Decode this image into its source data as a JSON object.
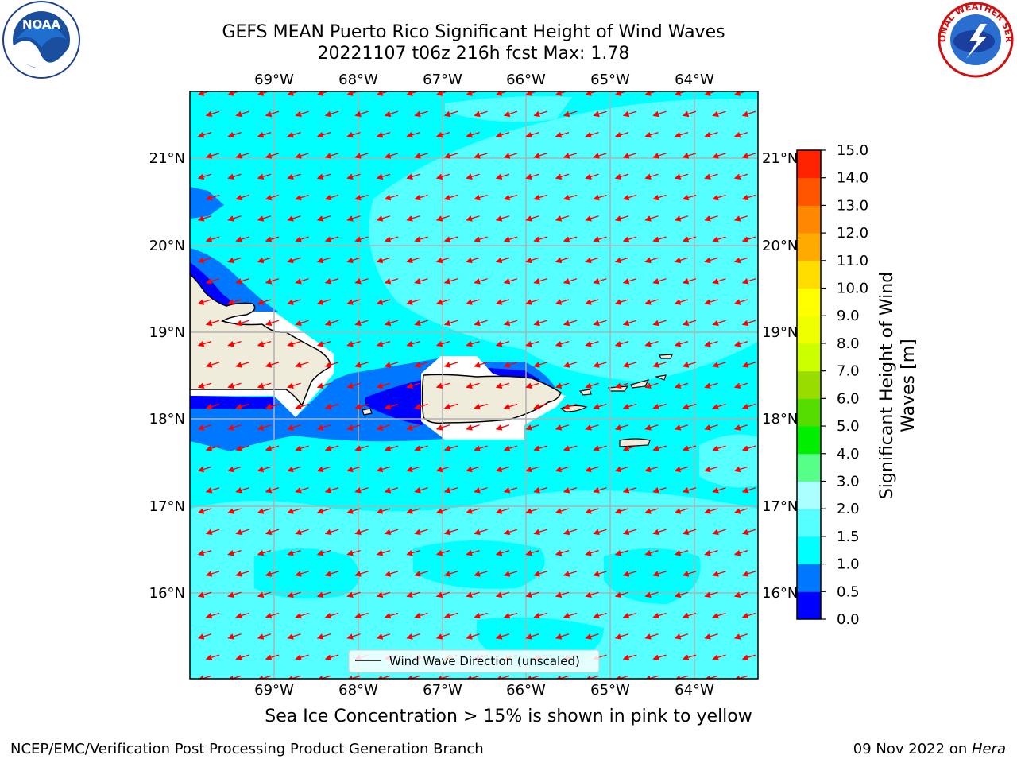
{
  "title": {
    "line1": "GEFS MEAN Puerto Rico Significant Height of Wind Waves",
    "line2": "20221107 t06z 216h fcst   Max: 1.78"
  },
  "map": {
    "lon_labels": [
      "69°W",
      "68°W",
      "67°W",
      "66°W",
      "65°W",
      "64°W"
    ],
    "lat_labels": [
      "21°N",
      "20°N",
      "19°N",
      "18°N",
      "17°N",
      "16°N"
    ],
    "legend_label": "Wind Wave Direction (unscaled)",
    "arrow_color": "#ff0000",
    "land_color": "#efecdc",
    "ocean_base_color": "#00ffff"
  },
  "colorbar": {
    "label": "Significant Height of Wind Waves [m]",
    "ticks": [
      "0.0",
      "0.5",
      "1.0",
      "1.5",
      "2.0",
      "3.0",
      "4.0",
      "5.0",
      "6.0",
      "7.0",
      "8.0",
      "9.0",
      "10.0",
      "11.0",
      "12.0",
      "13.0",
      "14.0",
      "15.0"
    ],
    "colors": [
      "#0000ff",
      "#0077ff",
      "#00ffff",
      "#55ffff",
      "#aaffff",
      "#55ff88",
      "#00ee00",
      "#55dd00",
      "#99dd00",
      "#ccff00",
      "#eeff00",
      "#ffff00",
      "#ffdd00",
      "#ffaa00",
      "#ff8800",
      "#ff5500",
      "#ff2200"
    ]
  },
  "subcaption": "Sea Ice Concentration > 15% is shown in pink to yellow",
  "footer": {
    "left": "NCEP/EMC/Verification Post Processing Product Generation Branch",
    "right_date": "09 Nov 2022 on ",
    "right_host": "Hera"
  },
  "logos": {
    "noaa_text": "NOAA",
    "nws_text": "NATIONAL WEATHER SERVICE"
  }
}
